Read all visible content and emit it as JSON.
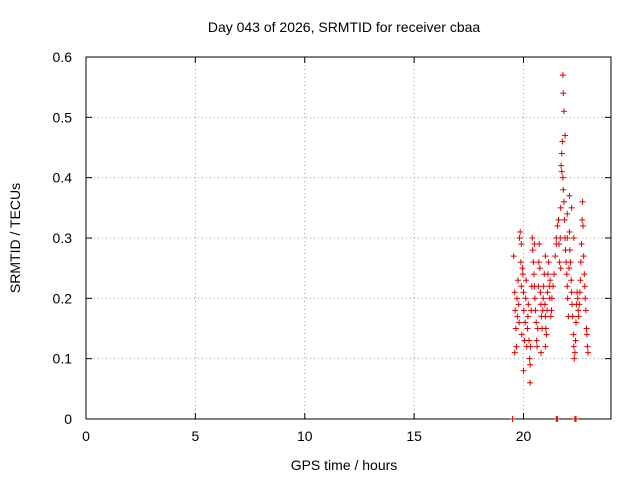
{
  "chart_data": {
    "type": "scatter",
    "title": "Day 043 of 2026, SRMTID for receiver cbaa",
    "xlabel": "GPS time / hours",
    "ylabel": "SRMTID / TECUs",
    "xlim": [
      0,
      24
    ],
    "ylim": [
      0,
      0.6
    ],
    "xticks": [
      0,
      5,
      10,
      15,
      20
    ],
    "yticks": [
      0,
      0.1,
      0.2,
      0.3,
      0.4,
      0.5,
      0.6
    ],
    "ytick_labels": [
      "0",
      "0.1",
      "0.2",
      "0.3",
      "0.4",
      "0.5",
      "0.6"
    ],
    "grid": true,
    "series": [
      {
        "name": "SRMTID",
        "color": "#dd0000",
        "marker": "plus",
        "points": [
          [
            19.5,
            0.0
          ],
          [
            21.5,
            0.0
          ],
          [
            21.55,
            0.0
          ],
          [
            22.35,
            0.0
          ],
          [
            22.4,
            0.0
          ],
          [
            19.55,
            0.27
          ],
          [
            19.6,
            0.21
          ],
          [
            19.62,
            0.18
          ],
          [
            19.65,
            0.15
          ],
          [
            19.68,
            0.12
          ],
          [
            19.7,
            0.2
          ],
          [
            19.72,
            0.17
          ],
          [
            19.75,
            0.23
          ],
          [
            19.78,
            0.19
          ],
          [
            19.8,
            0.16
          ],
          [
            19.82,
            0.3
          ],
          [
            19.85,
            0.31
          ],
          [
            19.88,
            0.26
          ],
          [
            19.9,
            0.22
          ],
          [
            19.92,
            0.14
          ],
          [
            19.95,
            0.25
          ],
          [
            19.97,
            0.24
          ],
          [
            20.0,
            0.21
          ],
          [
            20.02,
            0.18
          ],
          [
            20.05,
            0.13
          ],
          [
            20.08,
            0.16
          ],
          [
            20.1,
            0.2
          ],
          [
            20.12,
            0.23
          ],
          [
            20.15,
            0.12
          ],
          [
            20.18,
            0.15
          ],
          [
            20.2,
            0.17
          ],
          [
            20.22,
            0.19
          ],
          [
            20.25,
            0.13
          ],
          [
            20.28,
            0.1
          ],
          [
            20.3,
            0.09
          ],
          [
            20.32,
            0.12
          ],
          [
            20.35,
            0.18
          ],
          [
            20.38,
            0.22
          ],
          [
            20.4,
            0.3
          ],
          [
            20.42,
            0.28
          ],
          [
            20.45,
            0.26
          ],
          [
            20.48,
            0.24
          ],
          [
            20.5,
            0.22
          ],
          [
            20.52,
            0.2
          ],
          [
            20.55,
            0.18
          ],
          [
            20.58,
            0.16
          ],
          [
            20.6,
            0.13
          ],
          [
            20.62,
            0.12
          ],
          [
            20.65,
            0.15
          ],
          [
            20.68,
            0.22
          ],
          [
            20.7,
            0.26
          ],
          [
            20.72,
            0.29
          ],
          [
            20.75,
            0.25
          ],
          [
            20.78,
            0.21
          ],
          [
            20.8,
            0.19
          ],
          [
            20.82,
            0.17
          ],
          [
            20.85,
            0.15
          ],
          [
            20.88,
            0.18
          ],
          [
            20.9,
            0.2
          ],
          [
            20.92,
            0.22
          ],
          [
            20.95,
            0.24
          ],
          [
            20.98,
            0.19
          ],
          [
            21.0,
            0.17
          ],
          [
            21.02,
            0.15
          ],
          [
            21.05,
            0.14
          ],
          [
            21.08,
            0.18
          ],
          [
            21.1,
            0.21
          ],
          [
            21.12,
            0.24
          ],
          [
            21.15,
            0.26
          ],
          [
            21.18,
            0.22
          ],
          [
            21.2,
            0.2
          ],
          [
            21.22,
            0.23
          ],
          [
            21.25,
            0.17
          ],
          [
            21.28,
            0.18
          ],
          [
            21.3,
            0.2
          ],
          [
            21.35,
            0.22
          ],
          [
            21.4,
            0.24
          ],
          [
            21.45,
            0.27
          ],
          [
            21.5,
            0.3
          ],
          [
            21.55,
            0.32
          ],
          [
            21.6,
            0.33
          ],
          [
            21.62,
            0.29
          ],
          [
            21.65,
            0.26
          ],
          [
            21.68,
            0.3
          ],
          [
            21.7,
            0.35
          ],
          [
            21.72,
            0.42
          ],
          [
            21.75,
            0.44
          ],
          [
            21.78,
            0.46
          ],
          [
            21.8,
            0.4
          ],
          [
            21.82,
            0.38
          ],
          [
            21.85,
            0.36
          ],
          [
            21.88,
            0.33
          ],
          [
            21.9,
            0.3
          ],
          [
            21.92,
            0.28
          ],
          [
            21.95,
            0.26
          ],
          [
            21.98,
            0.24
          ],
          [
            22.0,
            0.22
          ],
          [
            22.02,
            0.2
          ],
          [
            22.05,
            0.17
          ],
          [
            22.08,
            0.25
          ],
          [
            22.1,
            0.31
          ],
          [
            22.12,
            0.28
          ],
          [
            22.15,
            0.26
          ],
          [
            22.18,
            0.23
          ],
          [
            22.2,
            0.21
          ],
          [
            22.22,
            0.19
          ],
          [
            22.25,
            0.17
          ],
          [
            22.28,
            0.14
          ],
          [
            22.3,
            0.12
          ],
          [
            22.32,
            0.1
          ],
          [
            22.35,
            0.11
          ],
          [
            22.38,
            0.13
          ],
          [
            22.4,
            0.16
          ],
          [
            22.42,
            0.19
          ],
          [
            22.45,
            0.21
          ],
          [
            22.48,
            0.2
          ],
          [
            22.5,
            0.18
          ],
          [
            22.52,
            0.17
          ],
          [
            22.55,
            0.19
          ],
          [
            22.58,
            0.21
          ],
          [
            22.6,
            0.23
          ],
          [
            22.62,
            0.26
          ],
          [
            22.65,
            0.29
          ],
          [
            22.68,
            0.33
          ],
          [
            22.7,
            0.36
          ],
          [
            22.72,
            0.32
          ],
          [
            22.75,
            0.27
          ],
          [
            22.78,
            0.24
          ],
          [
            22.8,
            0.22
          ],
          [
            22.82,
            0.2
          ],
          [
            22.85,
            0.18
          ],
          [
            22.88,
            0.15
          ],
          [
            22.9,
            0.14
          ],
          [
            22.92,
            0.12
          ],
          [
            22.95,
            0.11
          ],
          [
            21.8,
            0.57
          ],
          [
            21.82,
            0.54
          ],
          [
            21.85,
            0.51
          ],
          [
            21.9,
            0.47
          ],
          [
            21.75,
            0.41
          ],
          [
            22.0,
            0.34
          ],
          [
            22.1,
            0.37
          ],
          [
            22.2,
            0.35
          ],
          [
            22.3,
            0.3
          ],
          [
            20.0,
            0.08
          ],
          [
            19.6,
            0.11
          ],
          [
            20.3,
            0.06
          ],
          [
            21.0,
            0.12
          ],
          [
            21.5,
            0.29
          ],
          [
            22.0,
            0.3
          ],
          [
            21.0,
            0.27
          ],
          [
            20.5,
            0.29
          ],
          [
            19.9,
            0.29
          ],
          [
            20.8,
            0.11
          ],
          [
            21.7,
            0.25
          ]
        ]
      }
    ]
  }
}
